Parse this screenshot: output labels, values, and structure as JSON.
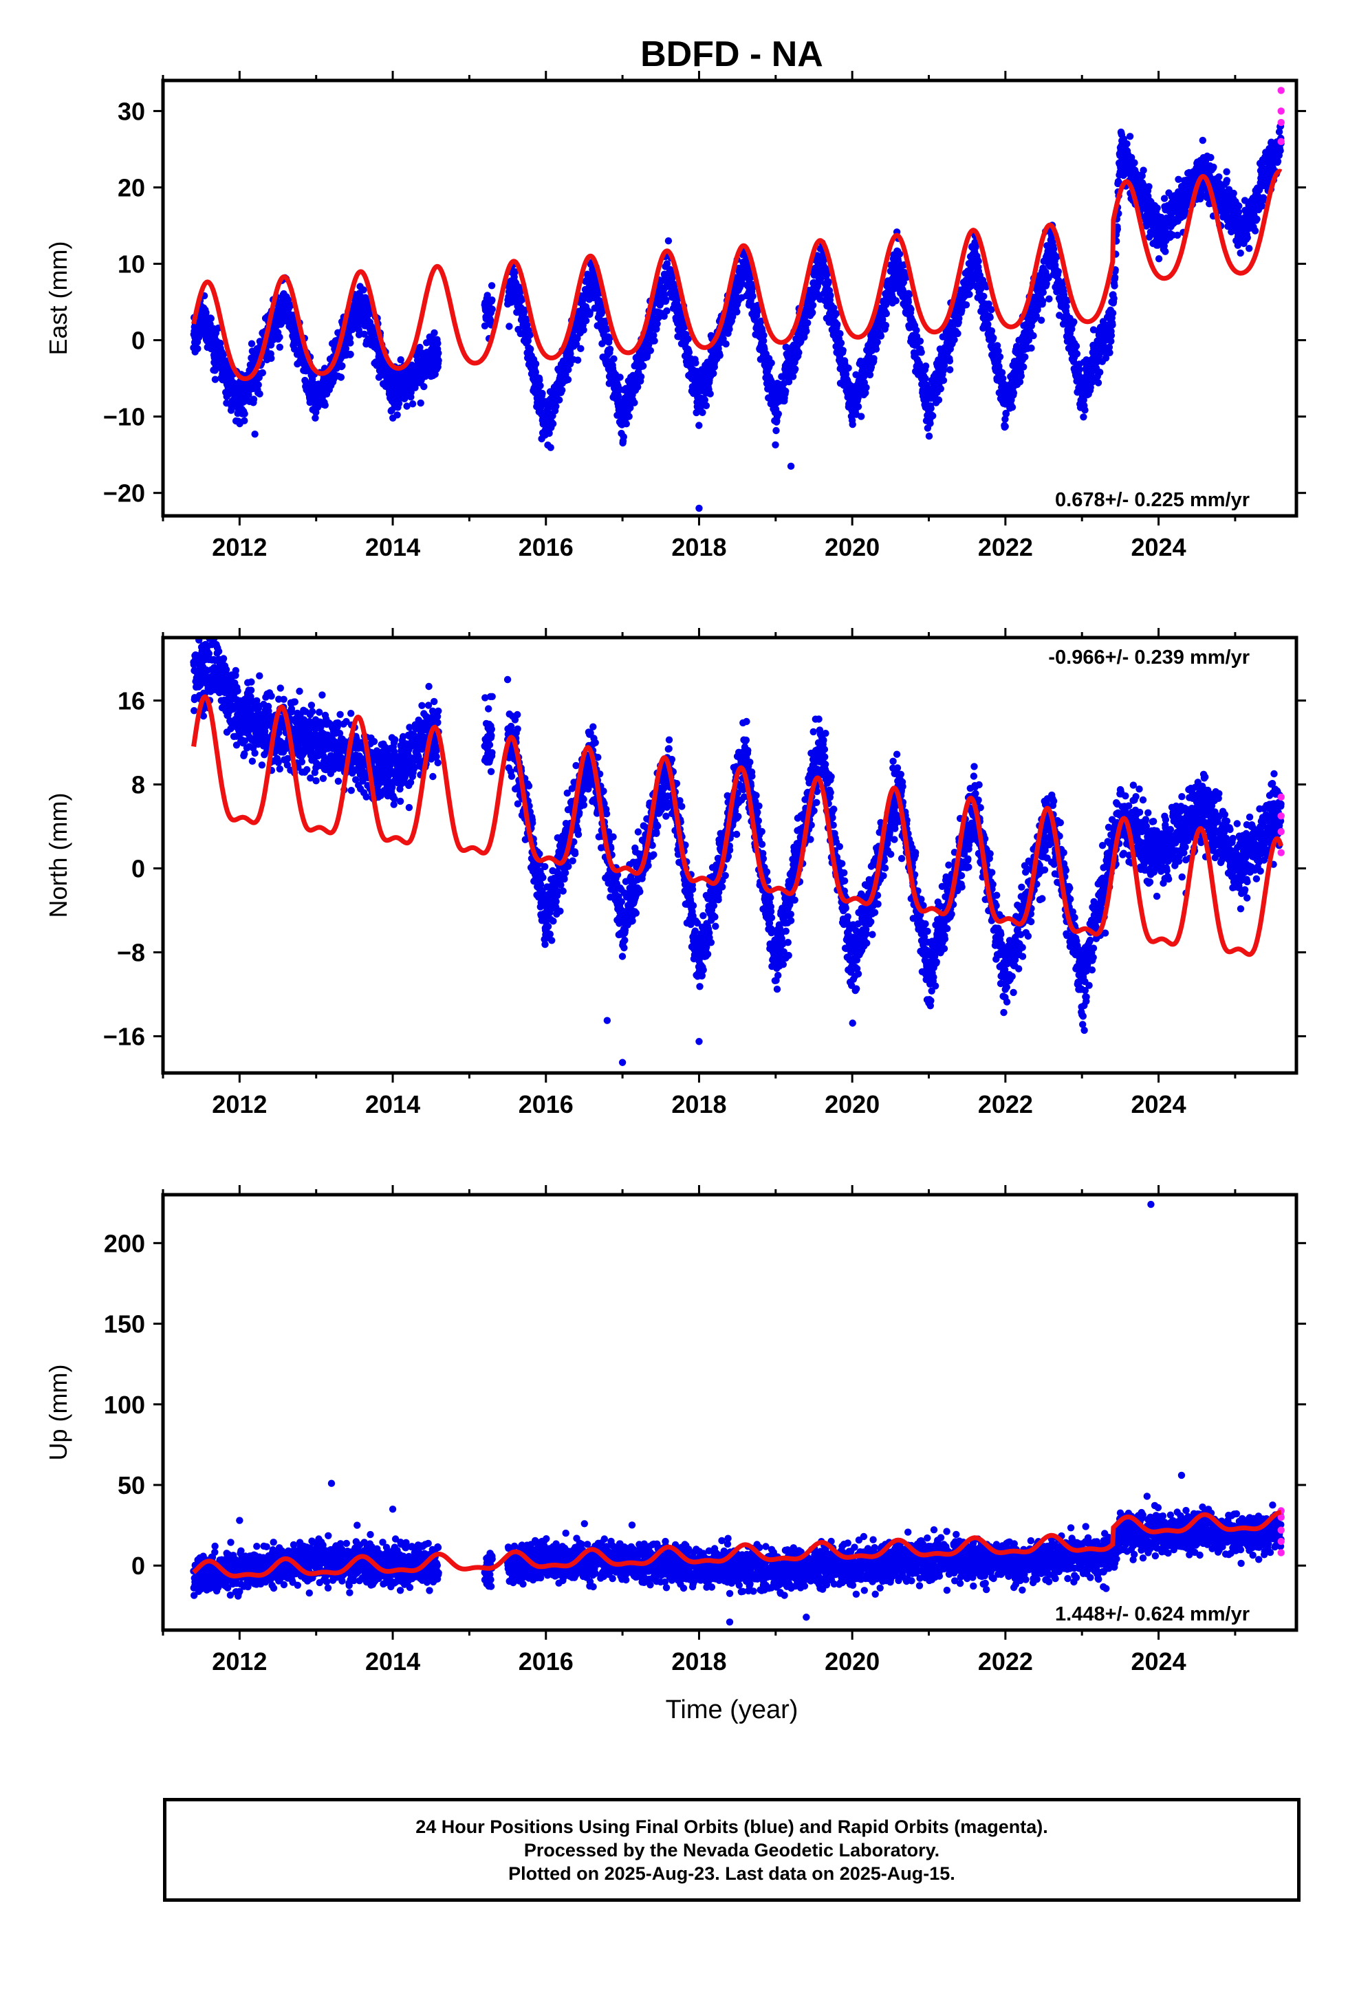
{
  "title": "BDFD - NA",
  "xlabel": "Time (year)",
  "colors": {
    "final_orbits": "#0000ee",
    "rapid_orbits": "#ff22ee",
    "model": "#ee1111",
    "axis": "#000000"
  },
  "footer": {
    "line1": "24 Hour Positions Using Final Orbits (blue) and Rapid Orbits (magenta).",
    "line2": "Processed by the Nevada Geodetic Laboratory.",
    "line3": "Plotted on 2025-Aug-23. Last data on 2025-Aug-15."
  },
  "chart_data": [
    {
      "type": "scatter",
      "component": "East",
      "ylabel": "East (mm)",
      "xlim": [
        2011.0,
        2025.8
      ],
      "ylim": [
        -23,
        34
      ],
      "xticks": [
        2012,
        2014,
        2016,
        2018,
        2020,
        2022,
        2024
      ],
      "yticks": [
        -20,
        -10,
        0,
        10,
        20,
        30
      ],
      "rate_label": "0.678+/- 0.225 mm/yr",
      "rate_label_position": "bottom-right",
      "model": {
        "trend_mm_per_yr": 0.678,
        "offset": 0.0,
        "annual_amplitude": 6.5,
        "annual_peak_year_fraction": 0.58,
        "semiannual_amplitude": 1.0,
        "steps": [
          {
            "year": 2023.4,
            "size": 5.0
          }
        ]
      },
      "observations": {
        "time_span": [
          2011.4,
          2025.6
        ],
        "trend_mm_per_yr": 0.75,
        "annual_amplitude": 8.5,
        "noise_mm": 1.5,
        "anchor_points": [
          [
            2011.4,
            0
          ],
          [
            2011.5,
            3
          ],
          [
            2012.0,
            -8
          ],
          [
            2012.6,
            5
          ],
          [
            2013.0,
            -8
          ],
          [
            2013.6,
            5
          ],
          [
            2014.0,
            -7
          ],
          [
            2015.6,
            7
          ],
          [
            2016.0,
            -11
          ],
          [
            2016.6,
            8
          ],
          [
            2017.0,
            -10
          ],
          [
            2017.6,
            9
          ],
          [
            2018.0,
            -8
          ],
          [
            2018.6,
            10
          ],
          [
            2019.0,
            -9
          ],
          [
            2019.6,
            10
          ],
          [
            2020.0,
            -9
          ],
          [
            2020.6,
            10
          ],
          [
            2021.0,
            -9
          ],
          [
            2021.6,
            11
          ],
          [
            2022.0,
            -9
          ],
          [
            2022.6,
            12
          ],
          [
            2023.0,
            -7
          ],
          [
            2023.4,
            3
          ],
          [
            2023.5,
            25
          ],
          [
            2024.0,
            14
          ],
          [
            2024.6,
            22
          ],
          [
            2025.1,
            14
          ],
          [
            2025.6,
            26
          ]
        ],
        "gaps": [
          [
            2014.6,
            2015.2
          ],
          [
            2015.3,
            2015.5
          ]
        ],
        "outliers": [
          [
            2012.2,
            -12.3
          ],
          [
            2017.6,
            13
          ],
          [
            2018.0,
            -22
          ],
          [
            2019.2,
            -16.5
          ]
        ],
        "rapid_orbit_points": [
          [
            2025.6,
            26
          ],
          [
            2025.6,
            28.5
          ],
          [
            2025.6,
            30
          ],
          [
            2025.6,
            32.7
          ]
        ]
      }
    },
    {
      "type": "scatter",
      "component": "North",
      "ylabel": "North (mm)",
      "xlim": [
        2011.0,
        2025.8
      ],
      "ylim": [
        -19.5,
        22
      ],
      "xticks": [
        2012,
        2014,
        2016,
        2018,
        2020,
        2022,
        2024
      ],
      "yticks": [
        -16,
        -8,
        0,
        8,
        16
      ],
      "rate_label": "-0.966+/- 0.239 mm/yr",
      "rate_label_position": "top-right",
      "model": {
        "trend_mm_per_yr": -0.966,
        "offset": 9.0,
        "annual_amplitude": 5.5,
        "annual_peak_year_fraction": 0.55,
        "semiannual_amplitude": 2.0,
        "steps": []
      },
      "observations": {
        "time_span": [
          2011.4,
          2025.6
        ],
        "trend_mm_per_yr": -0.9,
        "annual_amplitude": 7.0,
        "noise_mm": 1.6,
        "anchor_points": [
          [
            2011.4,
            18
          ],
          [
            2011.7,
            19.5
          ],
          [
            2012.0,
            14
          ],
          [
            2013.0,
            12
          ],
          [
            2014.0,
            9
          ],
          [
            2014.5,
            13
          ],
          [
            2015.6,
            12
          ],
          [
            2016.0,
            -5
          ],
          [
            2016.6,
            11
          ],
          [
            2017.0,
            -6
          ],
          [
            2017.6,
            10
          ],
          [
            2018.0,
            -9
          ],
          [
            2018.6,
            11
          ],
          [
            2019.0,
            -9
          ],
          [
            2019.6,
            12
          ],
          [
            2020.0,
            -10
          ],
          [
            2020.6,
            8
          ],
          [
            2021.0,
            -10
          ],
          [
            2021.6,
            6
          ],
          [
            2022.0,
            -10
          ],
          [
            2022.6,
            5
          ],
          [
            2023.0,
            -11
          ],
          [
            2023.5,
            5
          ],
          [
            2024.0,
            1
          ],
          [
            2024.6,
            6
          ],
          [
            2025.0,
            0
          ],
          [
            2025.6,
            5
          ]
        ],
        "gaps": [
          [
            2014.6,
            2015.2
          ],
          [
            2015.3,
            2015.5
          ]
        ],
        "outliers": [
          [
            2017.0,
            -18.5
          ],
          [
            2016.8,
            -14.5
          ],
          [
            2018.0,
            -16.5
          ],
          [
            2015.5,
            18
          ]
        ],
        "rapid_orbit_points": [
          [
            2025.6,
            1.5
          ],
          [
            2025.6,
            3.5
          ],
          [
            2025.6,
            5
          ],
          [
            2025.6,
            6.8
          ]
        ]
      }
    },
    {
      "type": "scatter",
      "component": "Up",
      "ylabel": "Up (mm)",
      "xlim": [
        2011.0,
        2025.8
      ],
      "ylim": [
        -40,
        230
      ],
      "xticks": [
        2012,
        2014,
        2016,
        2018,
        2020,
        2022,
        2024
      ],
      "yticks": [
        0,
        50,
        100,
        150,
        200
      ],
      "rate_label": "1.448+/- 0.624 mm/yr",
      "rate_label_position": "bottom-right",
      "model": {
        "trend_mm_per_yr": 1.448,
        "offset": -4.0,
        "annual_amplitude": 4.5,
        "annual_peak_year_fraction": 0.6,
        "semiannual_amplitude": 2.0,
        "steps": [
          {
            "year": 2023.4,
            "size": 10.0
          }
        ]
      },
      "observations": {
        "time_span": [
          2011.4,
          2025.6
        ],
        "trend_mm_per_yr": 1.4,
        "annual_amplitude": 5.0,
        "noise_mm": 6.0,
        "anchor_points": [
          [
            2011.4,
            -8
          ],
          [
            2012.0,
            -3
          ],
          [
            2013.0,
            3
          ],
          [
            2014.0,
            0
          ],
          [
            2015.6,
            0
          ],
          [
            2016.0,
            3
          ],
          [
            2017.0,
            2
          ],
          [
            2018.0,
            0
          ],
          [
            2019.0,
            -3
          ],
          [
            2020.0,
            0
          ],
          [
            2021.0,
            4
          ],
          [
            2022.0,
            2
          ],
          [
            2023.0,
            5
          ],
          [
            2023.4,
            5
          ],
          [
            2023.5,
            22
          ],
          [
            2024.0,
            20
          ],
          [
            2024.6,
            22
          ],
          [
            2025.0,
            18
          ],
          [
            2025.6,
            22
          ]
        ],
        "gaps": [
          [
            2014.6,
            2015.2
          ],
          [
            2015.3,
            2015.5
          ]
        ],
        "outliers": [
          [
            2023.9,
            224
          ],
          [
            2013.2,
            51
          ],
          [
            2024.3,
            56
          ],
          [
            2014.0,
            35
          ],
          [
            2012.0,
            28
          ],
          [
            2018.4,
            -35
          ],
          [
            2019.4,
            -32
          ]
        ],
        "rapid_orbit_points": [
          [
            2025.6,
            8
          ],
          [
            2025.6,
            15
          ],
          [
            2025.6,
            22
          ],
          [
            2025.6,
            30
          ],
          [
            2025.6,
            34
          ]
        ]
      }
    }
  ]
}
